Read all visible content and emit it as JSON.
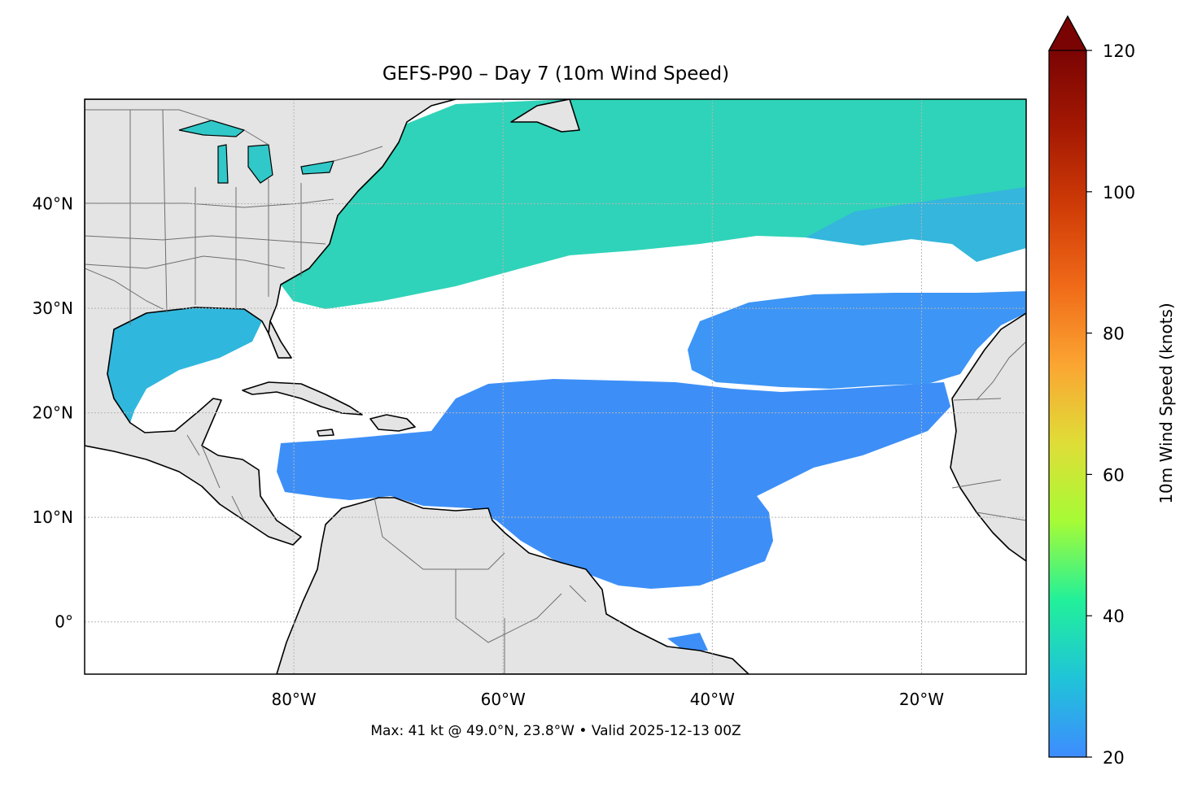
{
  "title": "GEFS-P90 – Day 7 (10m Wind Speed)",
  "footer": "Max: 41 kt @ 49.0°N, 23.8°W • Valid 2025-12-13 00Z",
  "map": {
    "lon_range": [
      -100,
      -10
    ],
    "lat_range": [
      -5,
      50
    ],
    "lat_ticks": [
      {
        "value": 40,
        "label": "40°N"
      },
      {
        "value": 30,
        "label": "30°N"
      },
      {
        "value": 20,
        "label": "20°N"
      },
      {
        "value": 10,
        "label": "10°N"
      },
      {
        "value": 0,
        "label": "0°"
      }
    ],
    "lon_ticks": [
      {
        "value": -80,
        "label": "80°W"
      },
      {
        "value": -60,
        "label": "60°W"
      },
      {
        "value": -40,
        "label": "40°W"
      },
      {
        "value": -20,
        "label": "20°W"
      }
    ],
    "gridlines": true,
    "land_color": "#e4e4e4",
    "coast_color": "#000000",
    "border_color": "#6e6e6e"
  },
  "colorbar": {
    "label": "10m Wind Speed (knots)",
    "range": [
      20,
      120
    ],
    "extend": "max",
    "ticks": [
      {
        "value": 20,
        "label": "20"
      },
      {
        "value": 40,
        "label": "40"
      },
      {
        "value": 60,
        "label": "60"
      },
      {
        "value": 80,
        "label": "80"
      },
      {
        "value": 100,
        "label": "100"
      },
      {
        "value": 120,
        "label": "120"
      }
    ],
    "stops": [
      "#3e8cff",
      "#1fc4d8",
      "#22f09a",
      "#a6fb36",
      "#dfdd37",
      "#fba532",
      "#f06a18",
      "#d03c07",
      "#a51903",
      "#7a0403"
    ]
  },
  "wind_field": {
    "max_kt": 41,
    "max_lat": 49.0,
    "max_lon": -23.8
  }
}
